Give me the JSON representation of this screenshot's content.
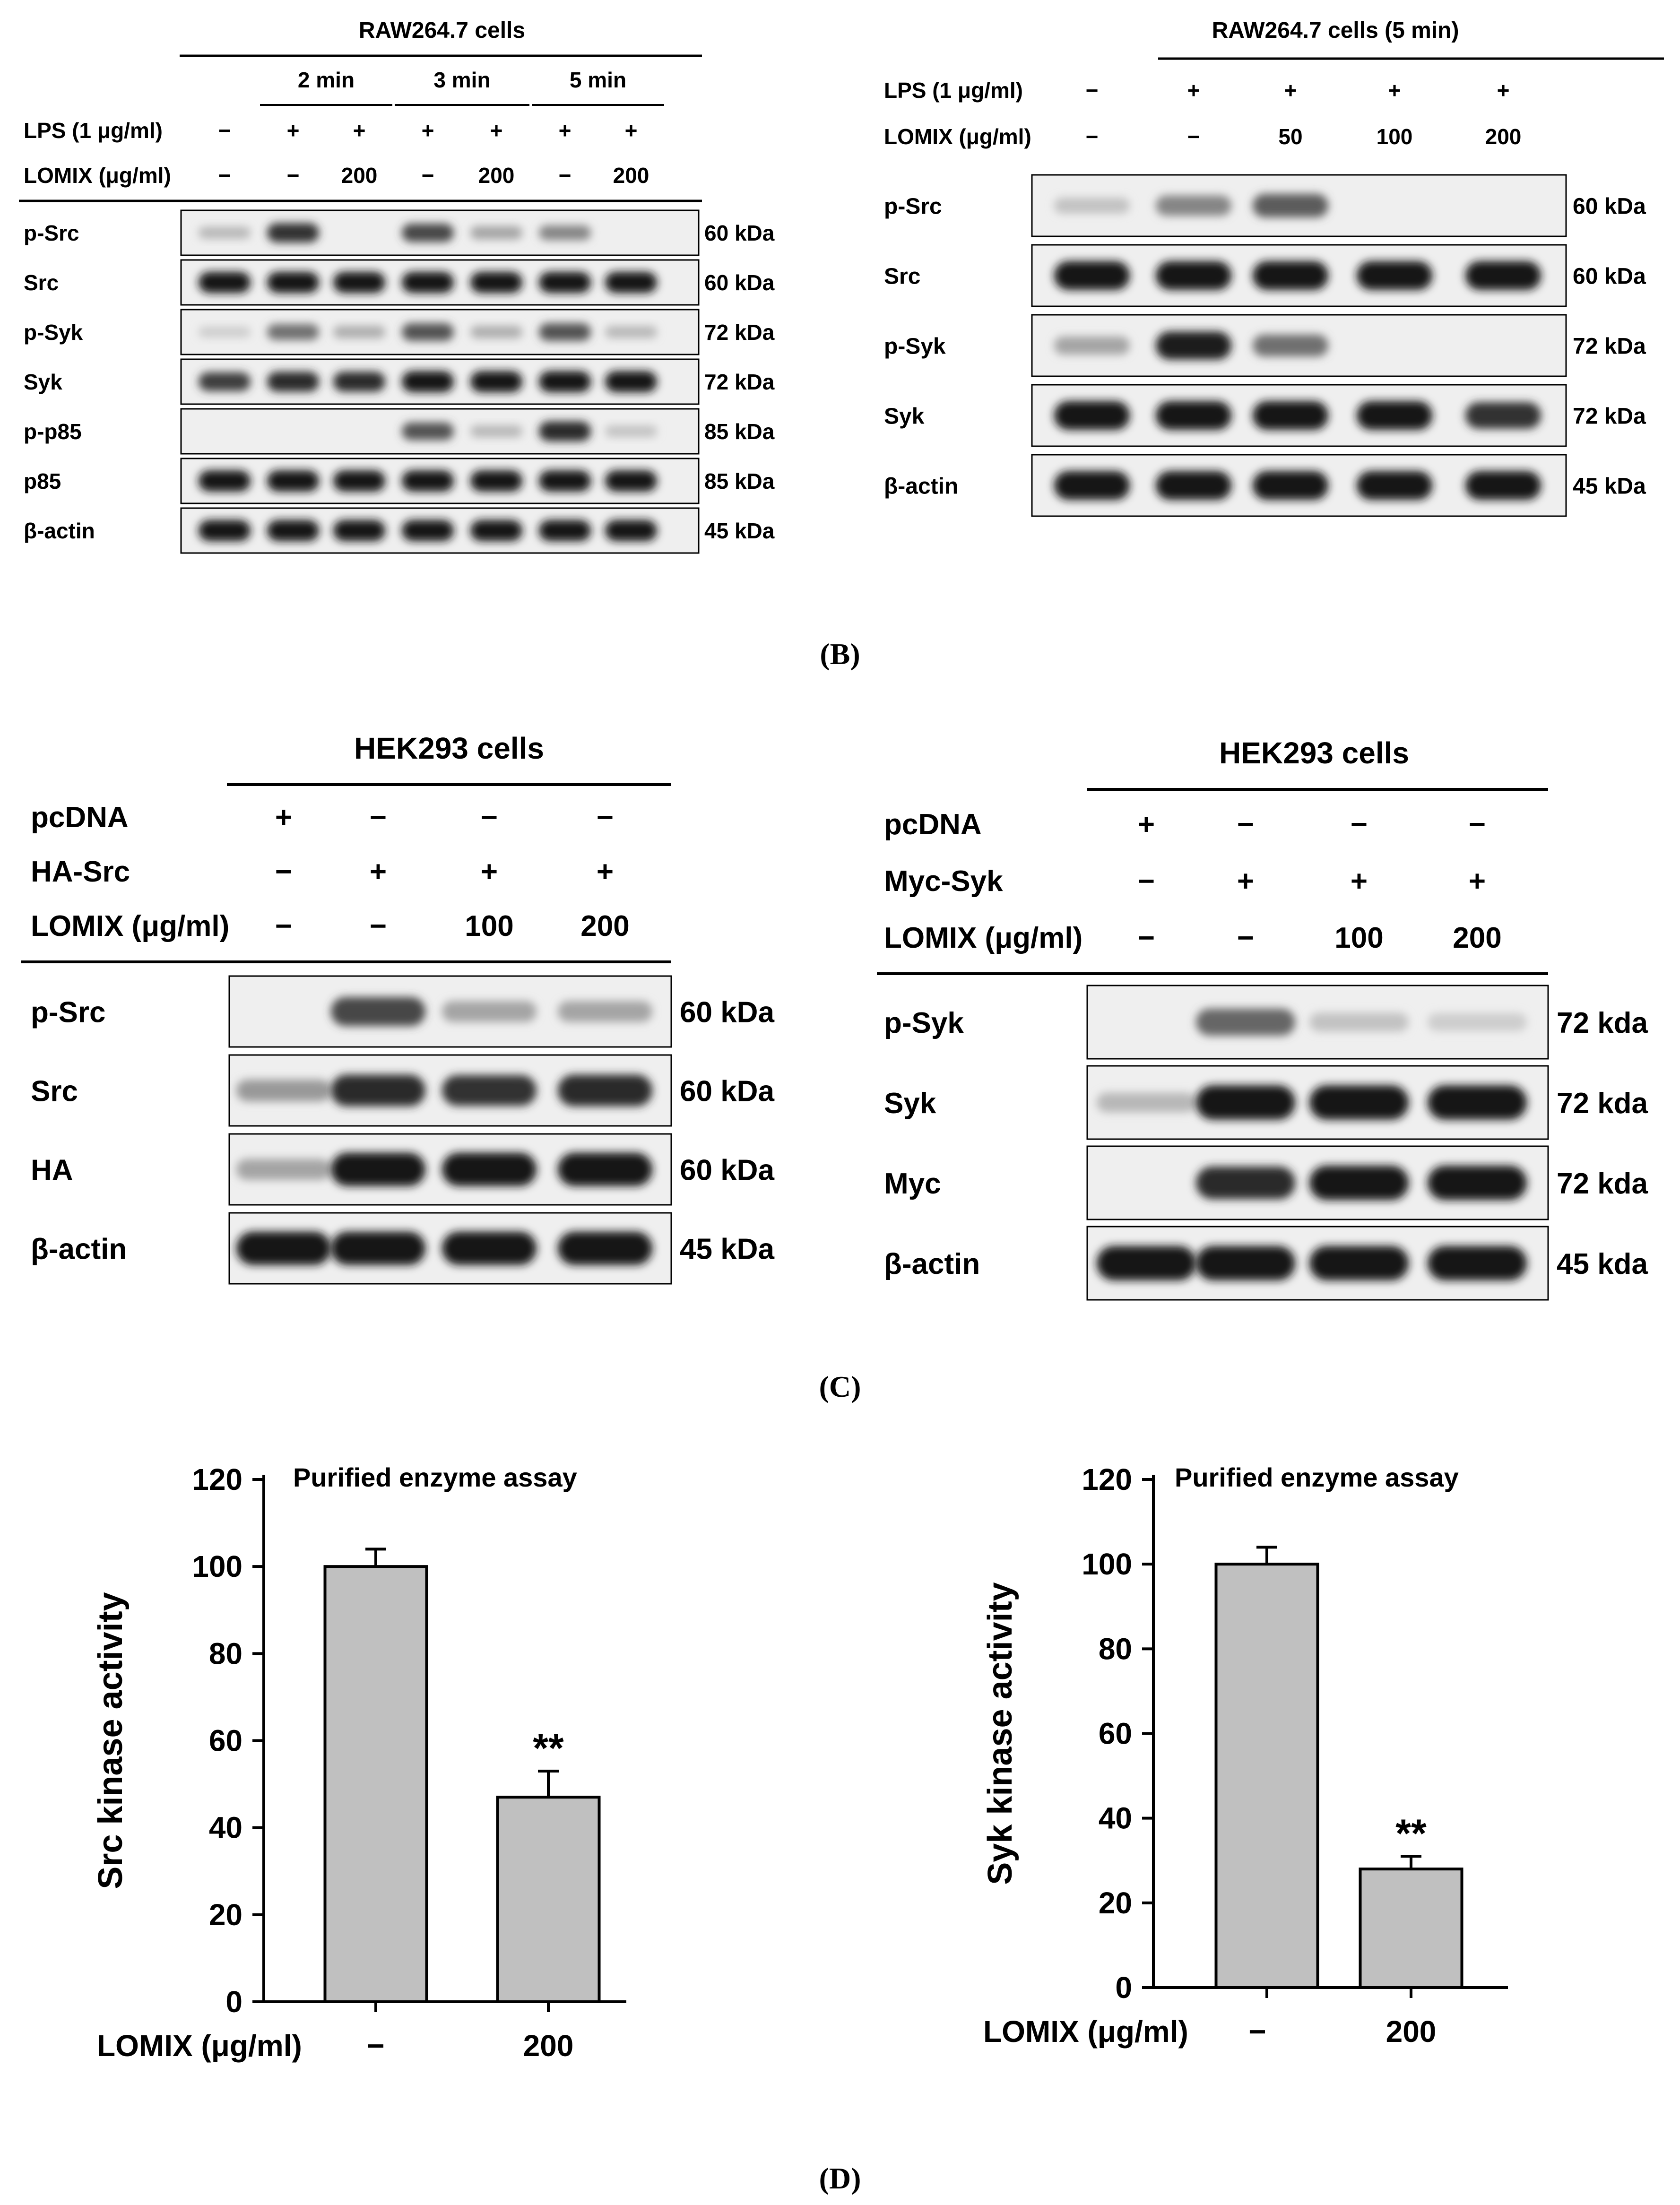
{
  "panelB": {
    "caption": "(B)",
    "left": {
      "title": "RAW264.7 cells",
      "times": [
        "2 min",
        "3 min",
        "5 min"
      ],
      "lps_label": "LPS (1 μg/ml)",
      "lps": [
        "−",
        "+",
        "+",
        "+",
        "+",
        "+",
        "+"
      ],
      "lomix_label": "LOMIX (μg/ml)",
      "lomix": [
        "−",
        "−",
        "200",
        "−",
        "200",
        "−",
        "200"
      ],
      "blots": [
        {
          "label": "p-Src",
          "mw": "60 kDa",
          "bands": [
            0.2,
            0.85,
            0.0,
            0.75,
            0.3,
            0.45,
            0.0
          ]
        },
        {
          "label": "Src",
          "mw": "60 kDa",
          "bands": [
            1,
            1,
            1,
            1,
            1,
            1,
            1
          ]
        },
        {
          "label": "p-Syk",
          "mw": "72 kDa",
          "bands": [
            0.1,
            0.55,
            0.25,
            0.7,
            0.25,
            0.7,
            0.2
          ]
        },
        {
          "label": "Syk",
          "mw": "72 kDa",
          "bands": [
            0.8,
            0.9,
            0.9,
            1,
            1,
            1,
            1
          ]
        },
        {
          "label": "p-p85",
          "mw": "85 kDa",
          "bands": [
            0.0,
            0.0,
            0.0,
            0.7,
            0.2,
            0.9,
            0.15
          ]
        },
        {
          "label": "p85",
          "mw": "85 kDa",
          "bands": [
            1,
            1,
            1,
            1,
            1,
            1,
            1
          ]
        },
        {
          "label": "β-actin",
          "mw": "45 kDa",
          "bands": [
            1,
            1,
            1,
            1,
            1,
            1,
            1
          ]
        }
      ]
    },
    "right": {
      "title": "RAW264.7 cells (5 min)",
      "lps_label": "LPS (1 μg/ml)",
      "lps": [
        "−",
        "+",
        "+",
        "+",
        "+"
      ],
      "lomix_label": "LOMIX (μg/ml)",
      "lomix": [
        "−",
        "−",
        "50",
        "100",
        "200"
      ],
      "blots": [
        {
          "label": "p-Src",
          "mw": "60 kDa",
          "bands": [
            0.15,
            0.45,
            0.65,
            0.0,
            0.0
          ]
        },
        {
          "label": "Src",
          "mw": "60 kDa",
          "bands": [
            1,
            1,
            1,
            1,
            1
          ]
        },
        {
          "label": "p-Syk",
          "mw": "72 kDa",
          "bands": [
            0.3,
            0.95,
            0.55,
            0.0,
            0.0
          ]
        },
        {
          "label": "Syk",
          "mw": "72 kDa",
          "bands": [
            1,
            1,
            1,
            1,
            0.85
          ]
        },
        {
          "label": "β-actin",
          "mw": "45 kDa",
          "bands": [
            1,
            1,
            1,
            1,
            1
          ]
        }
      ]
    }
  },
  "panelC": {
    "caption": "(C)",
    "left": {
      "title": "HEK293 cells",
      "rows": [
        {
          "label": "pcDNA",
          "values": [
            "+",
            "−",
            "−",
            "−"
          ]
        },
        {
          "label": "HA-Src",
          "values": [
            "−",
            "+",
            "+",
            "+"
          ]
        },
        {
          "label": "LOMIX (μg/ml)",
          "values": [
            "−",
            "−",
            "100",
            "200"
          ]
        }
      ],
      "blots": [
        {
          "label": "p-Src",
          "mw": "60 kDa",
          "bands": [
            0.0,
            0.75,
            0.3,
            0.3
          ]
        },
        {
          "label": "Src",
          "mw": "60 kDa",
          "bands": [
            0.35,
            0.9,
            0.85,
            0.9
          ]
        },
        {
          "label": "HA",
          "mw": "60 kDa",
          "bands": [
            0.3,
            1,
            1,
            1
          ]
        },
        {
          "label": "β-actin",
          "mw": "45 kDa",
          "bands": [
            1,
            1,
            1,
            1
          ]
        }
      ]
    },
    "right": {
      "title": "HEK293 cells",
      "rows": [
        {
          "label": "pcDNA",
          "values": [
            "+",
            "−",
            "−",
            "−"
          ]
        },
        {
          "label": "Myc-Syk",
          "values": [
            "−",
            "+",
            "+",
            "+"
          ]
        },
        {
          "label": "LOMIX (μg/ml)",
          "values": [
            "−",
            "−",
            "100",
            "200"
          ]
        }
      ],
      "blots": [
        {
          "label": "p-Syk",
          "mw": "72 kda",
          "bands": [
            0.0,
            0.6,
            0.15,
            0.1
          ]
        },
        {
          "label": "Syk",
          "mw": "72 kda",
          "bands": [
            0.2,
            1,
            1,
            1
          ]
        },
        {
          "label": "Myc",
          "mw": "72 kda",
          "bands": [
            0.0,
            0.9,
            1,
            1
          ]
        },
        {
          "label": "β-actin",
          "mw": "45 kda",
          "bands": [
            1,
            1,
            1,
            1
          ]
        }
      ]
    }
  },
  "panelD": {
    "caption": "(D)"
  },
  "chart_data": [
    {
      "type": "bar",
      "title": "Purified enzyme assay",
      "ylabel": "Src kinase activity",
      "xlabel": "LOMIX (μg/ml)",
      "categories": [
        "−",
        "200"
      ],
      "values": [
        100,
        47
      ],
      "errors": [
        4,
        6
      ],
      "annotations": [
        "",
        "**"
      ],
      "ylim": [
        0,
        120
      ],
      "yticks": [
        0,
        20,
        40,
        60,
        80,
        100,
        120
      ],
      "bar_color": "#c0c0c0"
    },
    {
      "type": "bar",
      "title": "Purified enzyme assay",
      "ylabel": "Syk kinase activity",
      "xlabel": "LOMIX (μg/ml)",
      "categories": [
        "−",
        "200"
      ],
      "values": [
        100,
        28
      ],
      "errors": [
        4,
        3
      ],
      "annotations": [
        "",
        "**"
      ],
      "ylim": [
        0,
        120
      ],
      "yticks": [
        0,
        20,
        40,
        60,
        80,
        100,
        120
      ],
      "bar_color": "#c0c0c0"
    }
  ]
}
